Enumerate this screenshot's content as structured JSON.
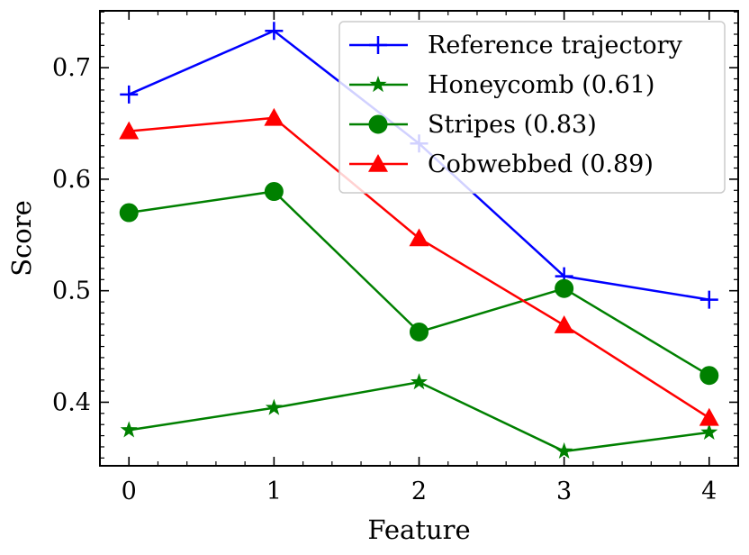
{
  "chart_data": {
    "type": "line",
    "title": "",
    "xlabel": "Feature",
    "ylabel": "Score",
    "x": [
      0,
      1,
      2,
      3,
      4
    ],
    "xlim": [
      -0.2,
      4.2
    ],
    "ylim": [
      0.343,
      0.751
    ],
    "xticks": [
      "0",
      "1",
      "2",
      "3",
      "4"
    ],
    "yticks": [
      "0.4",
      "0.5",
      "0.6",
      "0.7"
    ],
    "legend_position": "top-right",
    "grid": false,
    "series": [
      {
        "name": "Reference trajectory",
        "values": [
          0.676,
          0.733,
          0.632,
          0.513,
          0.492
        ],
        "color": "#0000ff",
        "marker": "plus"
      },
      {
        "name": "Honeycomb (0.61)",
        "values": [
          0.375,
          0.395,
          0.418,
          0.356,
          0.373
        ],
        "color": "#008000",
        "marker": "star"
      },
      {
        "name": "Stripes (0.83)",
        "values": [
          0.57,
          0.589,
          0.463,
          0.502,
          0.424
        ],
        "color": "#008000",
        "marker": "circle"
      },
      {
        "name": "Cobwebbed (0.89)",
        "values": [
          0.643,
          0.655,
          0.547,
          0.469,
          0.386
        ],
        "color": "#ff0000",
        "marker": "triangle"
      }
    ]
  }
}
